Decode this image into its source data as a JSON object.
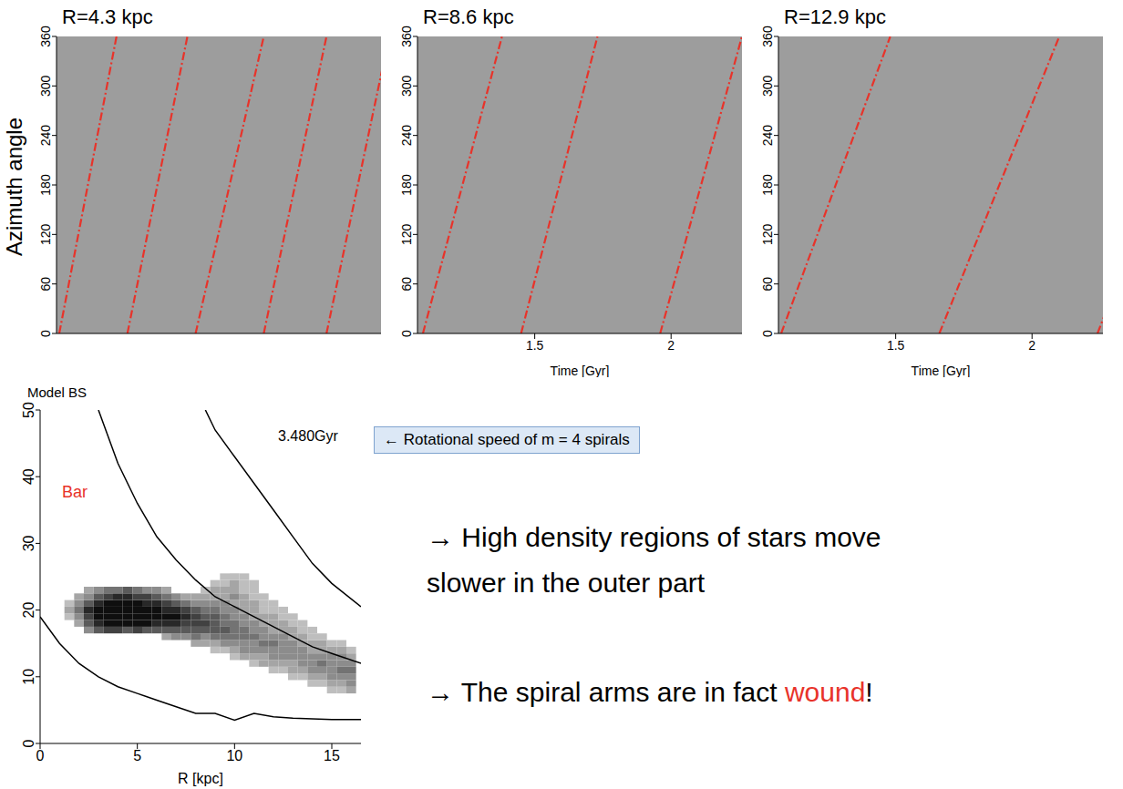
{
  "chart_data": [
    {
      "type": "line",
      "title": "R=4.3 kpc",
      "y_label": "Azimuth angle",
      "xlim": [
        1.07,
        2.26
      ],
      "ylim": [
        0,
        360
      ],
      "yticks": [
        0,
        60,
        120,
        180,
        240,
        300,
        360
      ],
      "tick_labels": "y",
      "color": "#e8332a",
      "line_style": "dashdot",
      "lines": [
        {
          "t": [
            1.08,
            1.29
          ],
          "azimuth": [
            0,
            360
          ]
        },
        {
          "t": [
            1.33,
            1.55
          ],
          "azimuth": [
            0,
            360
          ]
        },
        {
          "t": [
            1.58,
            1.83
          ],
          "azimuth": [
            0,
            360
          ]
        },
        {
          "t": [
            1.83,
            2.06
          ],
          "azimuth": [
            0,
            360
          ]
        },
        {
          "t": [
            2.06,
            2.29
          ],
          "azimuth": [
            0,
            360
          ]
        }
      ]
    },
    {
      "type": "line",
      "title": "R=8.6 kpc",
      "x_label": "Time [Gyr]",
      "xlim": [
        1.07,
        2.26
      ],
      "xticks": [
        1.5,
        2
      ],
      "ylim": [
        0,
        360
      ],
      "yticks": [
        0,
        60,
        120,
        180,
        240,
        300,
        360
      ],
      "color": "#e8332a",
      "line_style": "dashdot",
      "lines": [
        {
          "t": [
            1.09,
            1.38
          ],
          "azimuth": [
            0,
            360
          ]
        },
        {
          "t": [
            1.45,
            1.73
          ],
          "azimuth": [
            0,
            360
          ]
        },
        {
          "t": [
            1.96,
            2.26
          ],
          "azimuth": [
            0,
            360
          ]
        }
      ]
    },
    {
      "type": "line",
      "title": "R=12.9 kpc",
      "x_label": "Time [Gyr]",
      "xlim": [
        1.07,
        2.26
      ],
      "xticks": [
        1.5,
        2
      ],
      "ylim": [
        0,
        360
      ],
      "yticks": [
        0,
        60,
        120,
        180,
        240,
        300,
        360
      ],
      "color": "#e8332a",
      "line_style": "dashdot",
      "lines": [
        {
          "t": [
            1.08,
            1.48
          ],
          "azimuth": [
            0,
            360
          ]
        },
        {
          "t": [
            1.66,
            2.1
          ],
          "azimuth": [
            0,
            360
          ]
        },
        {
          "t": [
            2.24,
            2.66
          ],
          "azimuth": [
            0,
            360
          ]
        }
      ]
    },
    {
      "type": "line",
      "title": "Model BS",
      "x_label": "R [kpc]",
      "xlim": [
        0,
        16.5
      ],
      "xticks": [
        0,
        5,
        10,
        15
      ],
      "ylim": [
        0,
        50
      ],
      "yticks": [
        0,
        10,
        20,
        30,
        40,
        50
      ],
      "annotations": [
        {
          "text": "3.480Gyr",
          "color": "#000000"
        },
        {
          "text": "Bar",
          "color": "#e8332a"
        }
      ],
      "series": [
        {
          "color": "#000000",
          "x": [
            3,
            4,
            5,
            6,
            7,
            8,
            9,
            10,
            11,
            12,
            13,
            14,
            15,
            16.5
          ],
          "values": [
            50,
            42,
            36,
            31,
            27.5,
            24.5,
            22,
            20.5,
            19,
            17.5,
            16,
            14.5,
            13.5,
            12
          ]
        },
        {
          "color": "#000000",
          "x": [
            8.5,
            9,
            10,
            11,
            12,
            13,
            14,
            15,
            16.5
          ],
          "values": [
            50,
            47,
            43,
            39,
            35,
            31,
            27,
            24,
            20.5
          ]
        },
        {
          "color": "#000000",
          "x": [
            0,
            1,
            2,
            3,
            4,
            5,
            6,
            7,
            8,
            9,
            10,
            11,
            12,
            13,
            14,
            15,
            16.5
          ],
          "values": [
            19,
            15,
            12,
            10,
            8.5,
            7.5,
            6.5,
            5.5,
            4.5,
            4.5,
            3.5,
            4.5,
            4,
            3.8,
            3.7,
            3.6,
            3.6
          ]
        }
      ],
      "cells": {
        "size": [
          0.5,
          1
        ],
        "columns": [
          {
            "R": 1.5,
            "omega_start": 19,
            "density": [
              2,
              3,
              2
            ]
          },
          {
            "R": 2.0,
            "omega_start": 18,
            "density": [
              3,
              4,
              5,
              4,
              3
            ]
          },
          {
            "R": 2.5,
            "omega_start": 17,
            "density": [
              4,
              6,
              7,
              8,
              6,
              4,
              3
            ]
          },
          {
            "R": 3.0,
            "omega_start": 17,
            "density": [
              6,
              8,
              9,
              9,
              8,
              6,
              4
            ]
          },
          {
            "R": 3.5,
            "omega_start": 17,
            "density": [
              7,
              9,
              9,
              9,
              9,
              7,
              5
            ]
          },
          {
            "R": 4.0,
            "omega_start": 17,
            "density": [
              7,
              9,
              9,
              9,
              9,
              8,
              5
            ]
          },
          {
            "R": 4.5,
            "omega_start": 17,
            "density": [
              6,
              9,
              9,
              9,
              9,
              8,
              6
            ]
          },
          {
            "R": 5.0,
            "omega_start": 17,
            "density": [
              7,
              9,
              9,
              9,
              9,
              7,
              5
            ]
          },
          {
            "R": 5.5,
            "omega_start": 17,
            "density": [
              6,
              9,
              9,
              9,
              8,
              7,
              4
            ]
          },
          {
            "R": 6.0,
            "omega_start": 17,
            "density": [
              6,
              8,
              9,
              9,
              8,
              6,
              4
            ]
          },
          {
            "R": 6.5,
            "omega_start": 16,
            "density": [
              3,
              6,
              8,
              9,
              8,
              7,
              5,
              3
            ]
          },
          {
            "R": 7.0,
            "omega_start": 16,
            "density": [
              4,
              6,
              8,
              9,
              8,
              6,
              4
            ]
          },
          {
            "R": 7.5,
            "omega_start": 16,
            "density": [
              4,
              6,
              7,
              8,
              7,
              5,
              3
            ]
          },
          {
            "R": 8.0,
            "omega_start": 15,
            "density": [
              3,
              5,
              6,
              7,
              7,
              6,
              4,
              3
            ]
          },
          {
            "R": 8.5,
            "omega_start": 15,
            "density": [
              3,
              4,
              6,
              7,
              6,
              5,
              4,
              3,
              2
            ]
          },
          {
            "R": 9.0,
            "omega_start": 14,
            "density": [
              2,
              3,
              5,
              6,
              6,
              6,
              5,
              4,
              3,
              3,
              2
            ]
          },
          {
            "R": 9.5,
            "omega_start": 14,
            "density": [
              2,
              4,
              5,
              6,
              5,
              5,
              4,
              4,
              3,
              3,
              2,
              2
            ]
          },
          {
            "R": 10.0,
            "omega_start": 13,
            "density": [
              2,
              3,
              4,
              5,
              5,
              5,
              4,
              4,
              3,
              4,
              3,
              3,
              2
            ]
          },
          {
            "R": 10.5,
            "omega_start": 13,
            "density": [
              3,
              4,
              4,
              5,
              5,
              4,
              4,
              3,
              3,
              3,
              2,
              2,
              2
            ]
          },
          {
            "R": 11.0,
            "omega_start": 12,
            "density": [
              2,
              3,
              4,
              4,
              5,
              4,
              4,
              3,
              3,
              3,
              2,
              2,
              2
            ]
          },
          {
            "R": 11.5,
            "omega_start": 12,
            "density": [
              3,
              3,
              4,
              5,
              4,
              4,
              3,
              3,
              2,
              2,
              2
            ]
          },
          {
            "R": 12.0,
            "omega_start": 11,
            "density": [
              2,
              3,
              4,
              4,
              5,
              4,
              3,
              3,
              3,
              2,
              2
            ]
          },
          {
            "R": 12.5,
            "omega_start": 11,
            "density": [
              2,
              3,
              4,
              4,
              4,
              4,
              3,
              3,
              2,
              2
            ]
          },
          {
            "R": 13.0,
            "omega_start": 10,
            "density": [
              2,
              3,
              3,
              4,
              4,
              4,
              3,
              3,
              2,
              2
            ]
          },
          {
            "R": 13.5,
            "omega_start": 10,
            "density": [
              2,
              3,
              4,
              4,
              4,
              3,
              3,
              2,
              2
            ]
          },
          {
            "R": 14.0,
            "omega_start": 9,
            "density": [
              2,
              3,
              4,
              4,
              4,
              3,
              3,
              2,
              2
            ]
          },
          {
            "R": 14.5,
            "omega_start": 9,
            "density": [
              2,
              3,
              4,
              5,
              4,
              3,
              3,
              2
            ]
          },
          {
            "R": 15.0,
            "omega_start": 8,
            "density": [
              2,
              3,
              4,
              4,
              4,
              4,
              3,
              2
            ]
          },
          {
            "R": 15.5,
            "omega_start": 8,
            "density": [
              2,
              3,
              4,
              5,
              4,
              4,
              3,
              2
            ]
          },
          {
            "R": 16.0,
            "omega_start": 8,
            "density": [
              3,
              4,
              4,
              5,
              4,
              3,
              2
            ]
          }
        ]
      }
    }
  ],
  "callout": "← Rotational speed of m = 4 spirals",
  "bullets": [
    {
      "lines": [
        [
          {
            "text": "→ High density regions of stars move"
          }
        ],
        [
          {
            "text": "slower in the outer part"
          }
        ]
      ]
    },
    {
      "lines": [
        [
          {
            "text": "→ The spiral arms are in fact "
          },
          {
            "text": "wound",
            "color": "#e8332a"
          },
          {
            "text": "!"
          }
        ]
      ]
    }
  ]
}
